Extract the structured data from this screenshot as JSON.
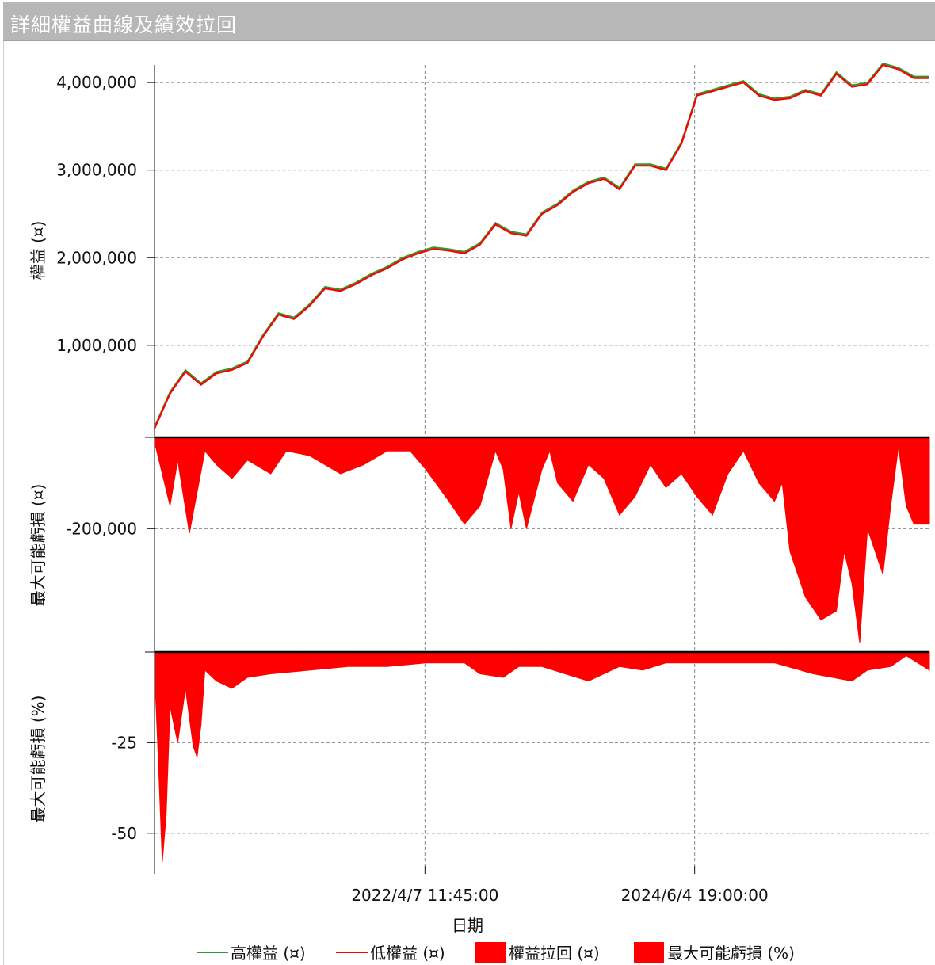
{
  "title": "詳細權益曲線及績效拉回",
  "chart_data": [
    {
      "type": "line",
      "ylabel": "權益 (¤)",
      "ylim": [
        -50000,
        4200000
      ],
      "yticks": [
        {
          "value": 1000000,
          "label": "1,000,000"
        },
        {
          "value": 2000000,
          "label": "2,000,000"
        },
        {
          "value": 3000000,
          "label": "3,000,000"
        },
        {
          "value": 4000000,
          "label": "4,000,000"
        }
      ],
      "series": [
        {
          "name": "高權益 (¤)",
          "color": "#2e9a2e"
        },
        {
          "name": "低權益 (¤)",
          "color": "#ff0000"
        }
      ],
      "x": [
        0,
        0.02,
        0.04,
        0.06,
        0.08,
        0.1,
        0.12,
        0.14,
        0.16,
        0.18,
        0.2,
        0.22,
        0.24,
        0.26,
        0.28,
        0.3,
        0.32,
        0.34,
        0.36,
        0.38,
        0.4,
        0.42,
        0.44,
        0.46,
        0.48,
        0.5,
        0.52,
        0.54,
        0.56,
        0.58,
        0.6,
        0.62,
        0.64,
        0.66,
        0.68,
        0.7,
        0.72,
        0.74,
        0.76,
        0.78,
        0.8,
        0.82,
        0.84,
        0.86,
        0.88,
        0.9,
        0.92,
        0.94,
        0.96,
        0.98,
        1.0
      ],
      "values": [
        50000,
        450000,
        700000,
        550000,
        680000,
        720000,
        800000,
        1100000,
        1350000,
        1300000,
        1450000,
        1650000,
        1620000,
        1700000,
        1800000,
        1880000,
        1980000,
        2050000,
        2100000,
        2080000,
        2050000,
        2150000,
        2380000,
        2280000,
        2250000,
        2500000,
        2600000,
        2750000,
        2850000,
        2900000,
        2780000,
        3050000,
        3050000,
        3000000,
        3300000,
        3850000,
        3900000,
        3950000,
        4000000,
        3850000,
        3800000,
        3820000,
        3900000,
        3850000,
        4100000,
        3950000,
        3980000,
        4200000,
        4150000,
        4050000,
        4050000
      ]
    },
    {
      "type": "area",
      "ylabel": "最大可能虧損 (¤)",
      "ylim": [
        -470000,
        0
      ],
      "yticks": [
        {
          "value": -200000,
          "label": "-200,000"
        }
      ],
      "series": [
        {
          "name": "權益拉回 (¤)",
          "color": "#ff0000"
        }
      ],
      "x": [
        0,
        0.01,
        0.02,
        0.03,
        0.045,
        0.055,
        0.065,
        0.08,
        0.1,
        0.12,
        0.15,
        0.17,
        0.2,
        0.24,
        0.27,
        0.3,
        0.33,
        0.35,
        0.38,
        0.4,
        0.42,
        0.44,
        0.45,
        0.46,
        0.47,
        0.48,
        0.5,
        0.51,
        0.52,
        0.53,
        0.54,
        0.56,
        0.58,
        0.6,
        0.62,
        0.64,
        0.66,
        0.68,
        0.7,
        0.72,
        0.74,
        0.76,
        0.78,
        0.8,
        0.81,
        0.82,
        0.84,
        0.86,
        0.88,
        0.89,
        0.9,
        0.91,
        0.92,
        0.93,
        0.94,
        0.95,
        0.96,
        0.97,
        0.98,
        1.0
      ],
      "values": [
        -10000,
        -80000,
        -150000,
        -50000,
        -210000,
        -120000,
        -30000,
        -60000,
        -90000,
        -50000,
        -80000,
        -30000,
        -40000,
        -80000,
        -60000,
        -30000,
        -30000,
        -70000,
        -140000,
        -190000,
        -150000,
        -30000,
        -70000,
        -200000,
        -120000,
        -200000,
        -70000,
        -30000,
        -100000,
        -120000,
        -140000,
        -60000,
        -90000,
        -170000,
        -130000,
        -60000,
        -110000,
        -80000,
        -130000,
        -170000,
        -80000,
        -30000,
        -100000,
        -140000,
        -100000,
        -250000,
        -350000,
        -400000,
        -380000,
        -250000,
        -320000,
        -450000,
        -200000,
        -250000,
        -300000,
        -150000,
        -20000,
        -150000,
        -190000,
        -190000
      ]
    },
    {
      "type": "area",
      "ylabel": "最大可能虧損 (%)",
      "ylim": [
        -59,
        0
      ],
      "yticks": [
        {
          "value": -25,
          "label": "-25"
        },
        {
          "value": -50,
          "label": "-50"
        }
      ],
      "series": [
        {
          "name": "最大可能虧損 (%)",
          "color": "#ff0000"
        }
      ],
      "x": [
        0,
        0.005,
        0.01,
        0.015,
        0.02,
        0.03,
        0.04,
        0.05,
        0.055,
        0.06,
        0.065,
        0.08,
        0.1,
        0.12,
        0.15,
        0.2,
        0.25,
        0.3,
        0.35,
        0.4,
        0.42,
        0.45,
        0.47,
        0.5,
        0.53,
        0.56,
        0.6,
        0.63,
        0.66,
        0.7,
        0.75,
        0.8,
        0.85,
        0.9,
        0.92,
        0.95,
        0.97,
        1.0
      ],
      "values": [
        -5,
        -30,
        -58,
        -45,
        -15,
        -25,
        -10,
        -26,
        -29,
        -20,
        -5,
        -8,
        -10,
        -7,
        -6,
        -5,
        -4,
        -4,
        -3,
        -3,
        -6,
        -7,
        -4,
        -4,
        -6,
        -8,
        -4,
        -5,
        -3,
        -3,
        -3,
        -3,
        -6,
        -8,
        -5,
        -4,
        -1,
        -5
      ]
    }
  ],
  "xaxis": {
    "label": "日期",
    "ticks": [
      {
        "pos": 0.349,
        "label": "2022/4/7 11:45:00"
      },
      {
        "pos": 0.697,
        "label": "2024/6/4 19:00:00"
      }
    ]
  },
  "legend": [
    {
      "label": "高權益 (¤)",
      "kind": "line",
      "color": "#2e9a2e"
    },
    {
      "label": "低權益 (¤)",
      "kind": "line",
      "color": "#ff0000"
    },
    {
      "label": "權益拉回 (¤)",
      "kind": "box",
      "color": "#ff0000"
    },
    {
      "label": "最大可能虧損 (%)",
      "kind": "box",
      "color": "#ff0000"
    }
  ]
}
